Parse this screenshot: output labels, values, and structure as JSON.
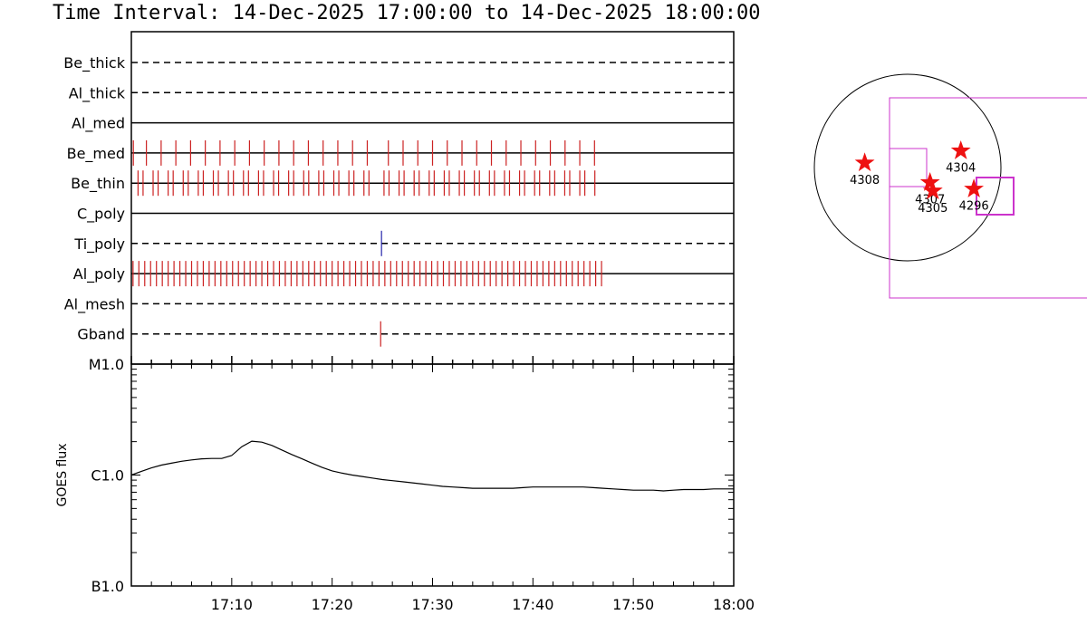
{
  "title": "Time Interval: 14-Dec-2025 17:00:00 to 14-Dec-2025 18:00:00",
  "colors": {
    "observation_tick": "#cc2222",
    "ti_poly_tick": "#2222aa",
    "fov": "#cc33cc",
    "star": "#ee1111"
  },
  "chart_data": [
    {
      "type": "timeline",
      "xlim": [
        "17:00",
        "18:00"
      ],
      "channels": [
        {
          "name": "Be_thick",
          "line": "dashed",
          "obs_times": []
        },
        {
          "name": "Al_thick",
          "line": "dashed",
          "obs_times": []
        },
        {
          "name": "Al_med",
          "line": "solid",
          "obs_times": []
        },
        {
          "name": "Be_med",
          "line": "solid",
          "obs_times": [
            "17:00:12",
            "17:01:30",
            "17:02:58",
            "17:04:26",
            "17:05:54",
            "17:07:22",
            "17:08:50",
            "17:10:18",
            "17:11:46",
            "17:13:14",
            "17:14:42",
            "17:16:10",
            "17:17:38",
            "17:19:06",
            "17:20:34",
            "17:22:02",
            "17:23:30",
            "17:25:36",
            "17:27:04",
            "17:28:32",
            "17:30:00",
            "17:31:28",
            "17:32:56",
            "17:34:24",
            "17:35:52",
            "17:37:20",
            "17:38:48",
            "17:40:16",
            "17:41:44",
            "17:43:12",
            "17:44:40",
            "17:46:08"
          ]
        },
        {
          "name": "Be_thin",
          "line": "solid",
          "obs_times": [
            "17:00:40",
            "17:01:10",
            "17:02:10",
            "17:02:40",
            "17:03:40",
            "17:04:10",
            "17:05:10",
            "17:05:40",
            "17:06:40",
            "17:07:10",
            "17:08:10",
            "17:08:40",
            "17:09:40",
            "17:10:10",
            "17:11:10",
            "17:11:40",
            "17:12:40",
            "17:13:10",
            "17:14:10",
            "17:14:40",
            "17:15:40",
            "17:16:10",
            "17:17:10",
            "17:17:40",
            "17:18:40",
            "17:19:10",
            "17:20:10",
            "17:20:40",
            "17:21:40",
            "17:22:10",
            "17:23:10",
            "17:23:40",
            "17:25:10",
            "17:25:40",
            "17:26:40",
            "17:27:10",
            "17:28:10",
            "17:28:40",
            "17:29:40",
            "17:30:10",
            "17:31:10",
            "17:31:40",
            "17:32:40",
            "17:33:10",
            "17:34:10",
            "17:34:40",
            "17:35:40",
            "17:36:10",
            "17:37:10",
            "17:37:40",
            "17:38:40",
            "17:39:10",
            "17:40:10",
            "17:40:40",
            "17:41:40",
            "17:42:10",
            "17:43:10",
            "17:43:40",
            "17:44:40",
            "17:45:10",
            "17:46:10"
          ]
        },
        {
          "name": "C_poly",
          "line": "solid",
          "obs_times": []
        },
        {
          "name": "Ti_poly",
          "line": "dashed",
          "obs_times": [
            "17:24:55"
          ],
          "tick_color": "blue"
        },
        {
          "name": "Al_poly",
          "line": "solid",
          "obs_times": "every 35 s from 17:00:10 to 17:47:00"
        },
        {
          "name": "Al_mesh",
          "line": "dashed",
          "obs_times": []
        },
        {
          "name": "Gband",
          "line": "dashed",
          "obs_times": [
            "17:24:50"
          ]
        }
      ]
    },
    {
      "type": "line",
      "ylabel": "GOES flux",
      "yscale": "log",
      "ylim": [
        1e-07,
        1e-05
      ],
      "y_tick_labels": [
        "B1.0",
        "C1.0",
        "M1.0"
      ],
      "x_tick_labels": [
        "17:10",
        "17:20",
        "17:30",
        "17:40",
        "17:50",
        "18:00"
      ],
      "xlim": [
        "17:00",
        "18:00"
      ],
      "series": [
        {
          "times": [
            "17:00",
            "17:01",
            "17:02",
            "17:03",
            "17:04",
            "17:05",
            "17:06",
            "17:07",
            "17:08",
            "17:09",
            "17:10",
            "17:11",
            "17:12",
            "17:13",
            "17:14",
            "17:15",
            "17:16",
            "17:17",
            "17:18",
            "17:19",
            "17:20",
            "17:21",
            "17:22",
            "17:23",
            "17:24",
            "17:25",
            "17:26",
            "17:27",
            "17:28",
            "17:29",
            "17:30",
            "17:31",
            "17:32",
            "17:33",
            "17:34",
            "17:35",
            "17:36",
            "17:37",
            "17:38",
            "17:39",
            "17:40",
            "17:41",
            "17:42",
            "17:43",
            "17:44",
            "17:45",
            "17:46",
            "17:47",
            "17:48",
            "17:49",
            "17:50",
            "17:51",
            "17:52",
            "17:53",
            "17:54",
            "17:55",
            "17:56",
            "17:57",
            "17:58",
            "17:59",
            "18:00"
          ],
          "values": [
            1e-06,
            1.08e-06,
            1.16e-06,
            1.23e-06,
            1.28e-06,
            1.33e-06,
            1.37e-06,
            1.4e-06,
            1.41e-06,
            1.41e-06,
            1.5e-06,
            1.8e-06,
            2.02e-06,
            1.98e-06,
            1.85e-06,
            1.68e-06,
            1.53e-06,
            1.4e-06,
            1.28e-06,
            1.17e-06,
            1.09e-06,
            1.04e-06,
            1e-06,
            9.7e-07,
            9.4e-07,
            9.1e-07,
            8.9e-07,
            8.7e-07,
            8.5e-07,
            8.3e-07,
            8.1e-07,
            7.9e-07,
            7.8e-07,
            7.7e-07,
            7.6e-07,
            7.6e-07,
            7.6e-07,
            7.6e-07,
            7.6e-07,
            7.7e-07,
            7.8e-07,
            7.8e-07,
            7.8e-07,
            7.8e-07,
            7.8e-07,
            7.8e-07,
            7.7e-07,
            7.6e-07,
            7.5e-07,
            7.4e-07,
            7.3e-07,
            7.3e-07,
            7.3e-07,
            7.2e-07,
            7.3e-07,
            7.4e-07,
            7.4e-07,
            7.4e-07,
            7.5e-07,
            7.5e-07,
            7.5e-07
          ]
        }
      ]
    },
    {
      "type": "scatter",
      "subtype": "solar-disk-map",
      "active_regions": [
        {
          "label": "4304",
          "x": 570,
          "y": -180
        },
        {
          "label": "4308",
          "x": -460,
          "y": -50
        },
        {
          "label": "4307",
          "x": 240,
          "y": 160
        },
        {
          "label": "4305",
          "x": 270,
          "y": 250
        },
        {
          "label": "4296",
          "x": 710,
          "y": 230
        }
      ],
      "xrange": [
        -1000,
        1000
      ],
      "yrange": [
        -1000,
        1000
      ]
    }
  ]
}
